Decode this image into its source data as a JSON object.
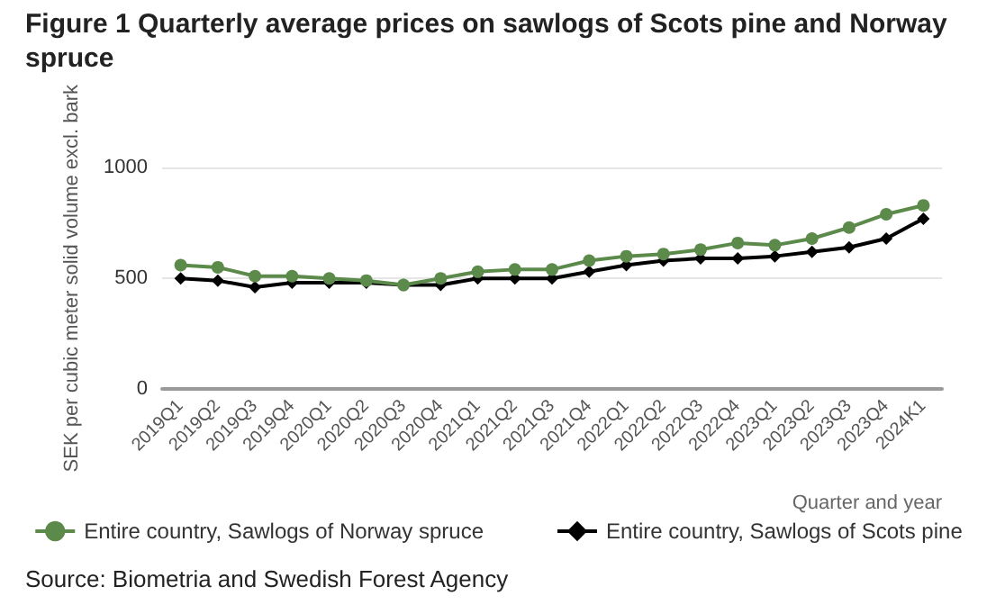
{
  "chart_data": {
    "type": "line",
    "title": "Figure 1 Quarterly average prices on sawlogs of Scots pine and Norway spruce",
    "xlabel": "Quarter and year",
    "ylabel": "SEK per cubic meter solid volume excl. bark",
    "categories": [
      "2019Q1",
      "2019Q2",
      "2019Q3",
      "2019Q4",
      "2020Q1",
      "2020Q2",
      "2020Q3",
      "2020Q4",
      "2021Q1",
      "2021Q2",
      "2021Q3",
      "2021Q4",
      "2022Q1",
      "2022Q2",
      "2022Q3",
      "2022Q4",
      "2023Q1",
      "2023Q2",
      "2023Q3",
      "2023Q4",
      "2024K1"
    ],
    "series": [
      {
        "name": "Entire country, Sawlogs of Norway spruce",
        "color": "#5b8a4b",
        "marker": "circle",
        "values": [
          560,
          550,
          510,
          510,
          500,
          490,
          470,
          500,
          530,
          540,
          540,
          580,
          600,
          610,
          630,
          660,
          650,
          680,
          730,
          790,
          830
        ]
      },
      {
        "name": "Entire country, Sawlogs of Scots pine",
        "color": "#000000",
        "marker": "diamond",
        "values": [
          500,
          490,
          460,
          480,
          480,
          480,
          470,
          470,
          500,
          500,
          500,
          530,
          560,
          580,
          590,
          590,
          600,
          620,
          640,
          680,
          770
        ]
      }
    ],
    "ylim": [
      0,
      1000
    ],
    "yticks": [
      0,
      500,
      1000
    ],
    "grid": "y",
    "legend": "bottom",
    "line_style": "solid",
    "annotations": [
      "Source: Biometria and Swedish Forest Agency"
    ]
  }
}
